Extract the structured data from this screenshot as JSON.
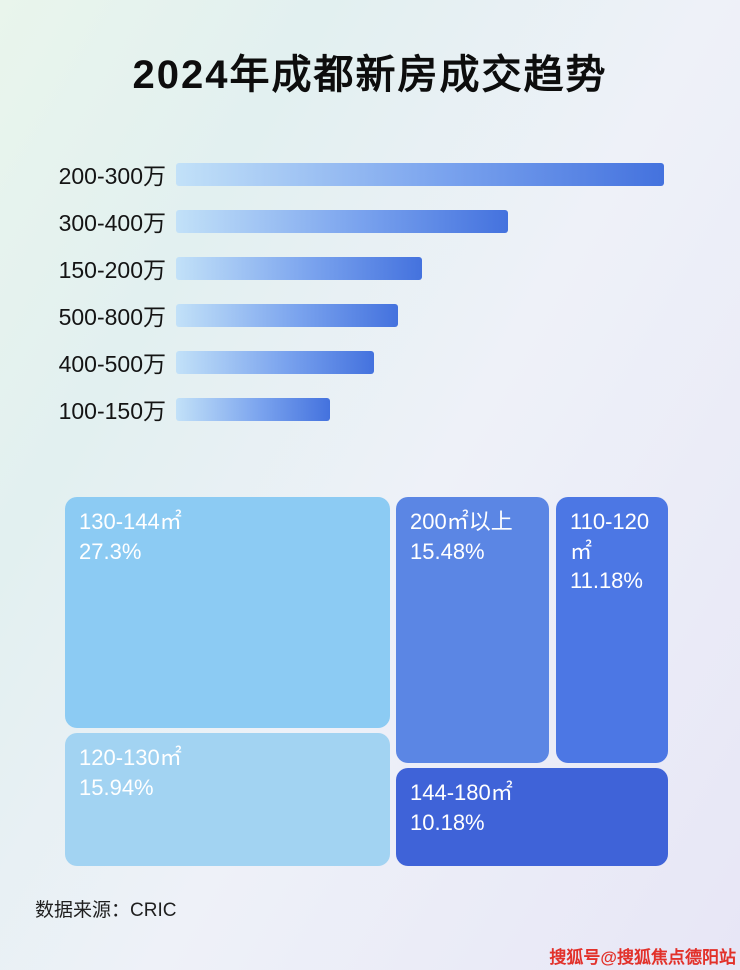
{
  "page": {
    "title": "2024年成都新房成交趋势"
  },
  "bar_chart": {
    "items": [
      {
        "label": "200-300万",
        "width_pct": 100
      },
      {
        "label": "300-400万",
        "width_pct": 68
      },
      {
        "label": "150-200万",
        "width_pct": 50.5
      },
      {
        "label": "500-800万",
        "width_pct": 45.4
      },
      {
        "label": "400-500万",
        "width_pct": 40.6
      },
      {
        "label": "100-150万",
        "width_pct": 31.5
      }
    ]
  },
  "treemap": {
    "items": [
      {
        "label": "130-144㎡",
        "percent": "27.3%",
        "color": "#8ccbf3"
      },
      {
        "label": "120-130㎡",
        "percent": "15.94%",
        "color": "#a2d3f2"
      },
      {
        "label": "200㎡以上",
        "percent": "15.48%",
        "color": "#5b86e4"
      },
      {
        "label": "110-120㎡",
        "percent": "11.18%",
        "color": "#4c77e4"
      },
      {
        "label": "144-180㎡",
        "percent": "10.18%",
        "color": "#3f63d8"
      }
    ]
  },
  "footer": {
    "source": "数据来源：CRIC"
  },
  "watermark": {
    "text": "搜狐号@搜狐焦点德阳站",
    "color": "#e2312a"
  },
  "chart_data": [
    {
      "type": "bar",
      "orientation": "horizontal",
      "title": "2024年成都新房成交趋势",
      "categories": [
        "200-300万",
        "300-400万",
        "150-200万",
        "500-800万",
        "400-500万",
        "100-150万"
      ],
      "values": [
        100,
        68,
        50.5,
        45.4,
        40.6,
        31.5
      ],
      "value_note": "relative bar lengths normalized to longest bar = 100; no numeric labels shown in image",
      "xlabel": "",
      "ylabel": "",
      "grid": false,
      "legend": false
    },
    {
      "type": "treemap",
      "title": "",
      "categories": [
        "130-144㎡",
        "200㎡以上",
        "110-120㎡",
        "120-130㎡",
        "144-180㎡"
      ],
      "values": [
        27.3,
        15.48,
        11.18,
        15.94,
        10.18
      ],
      "unit": "%",
      "legend": false
    }
  ]
}
